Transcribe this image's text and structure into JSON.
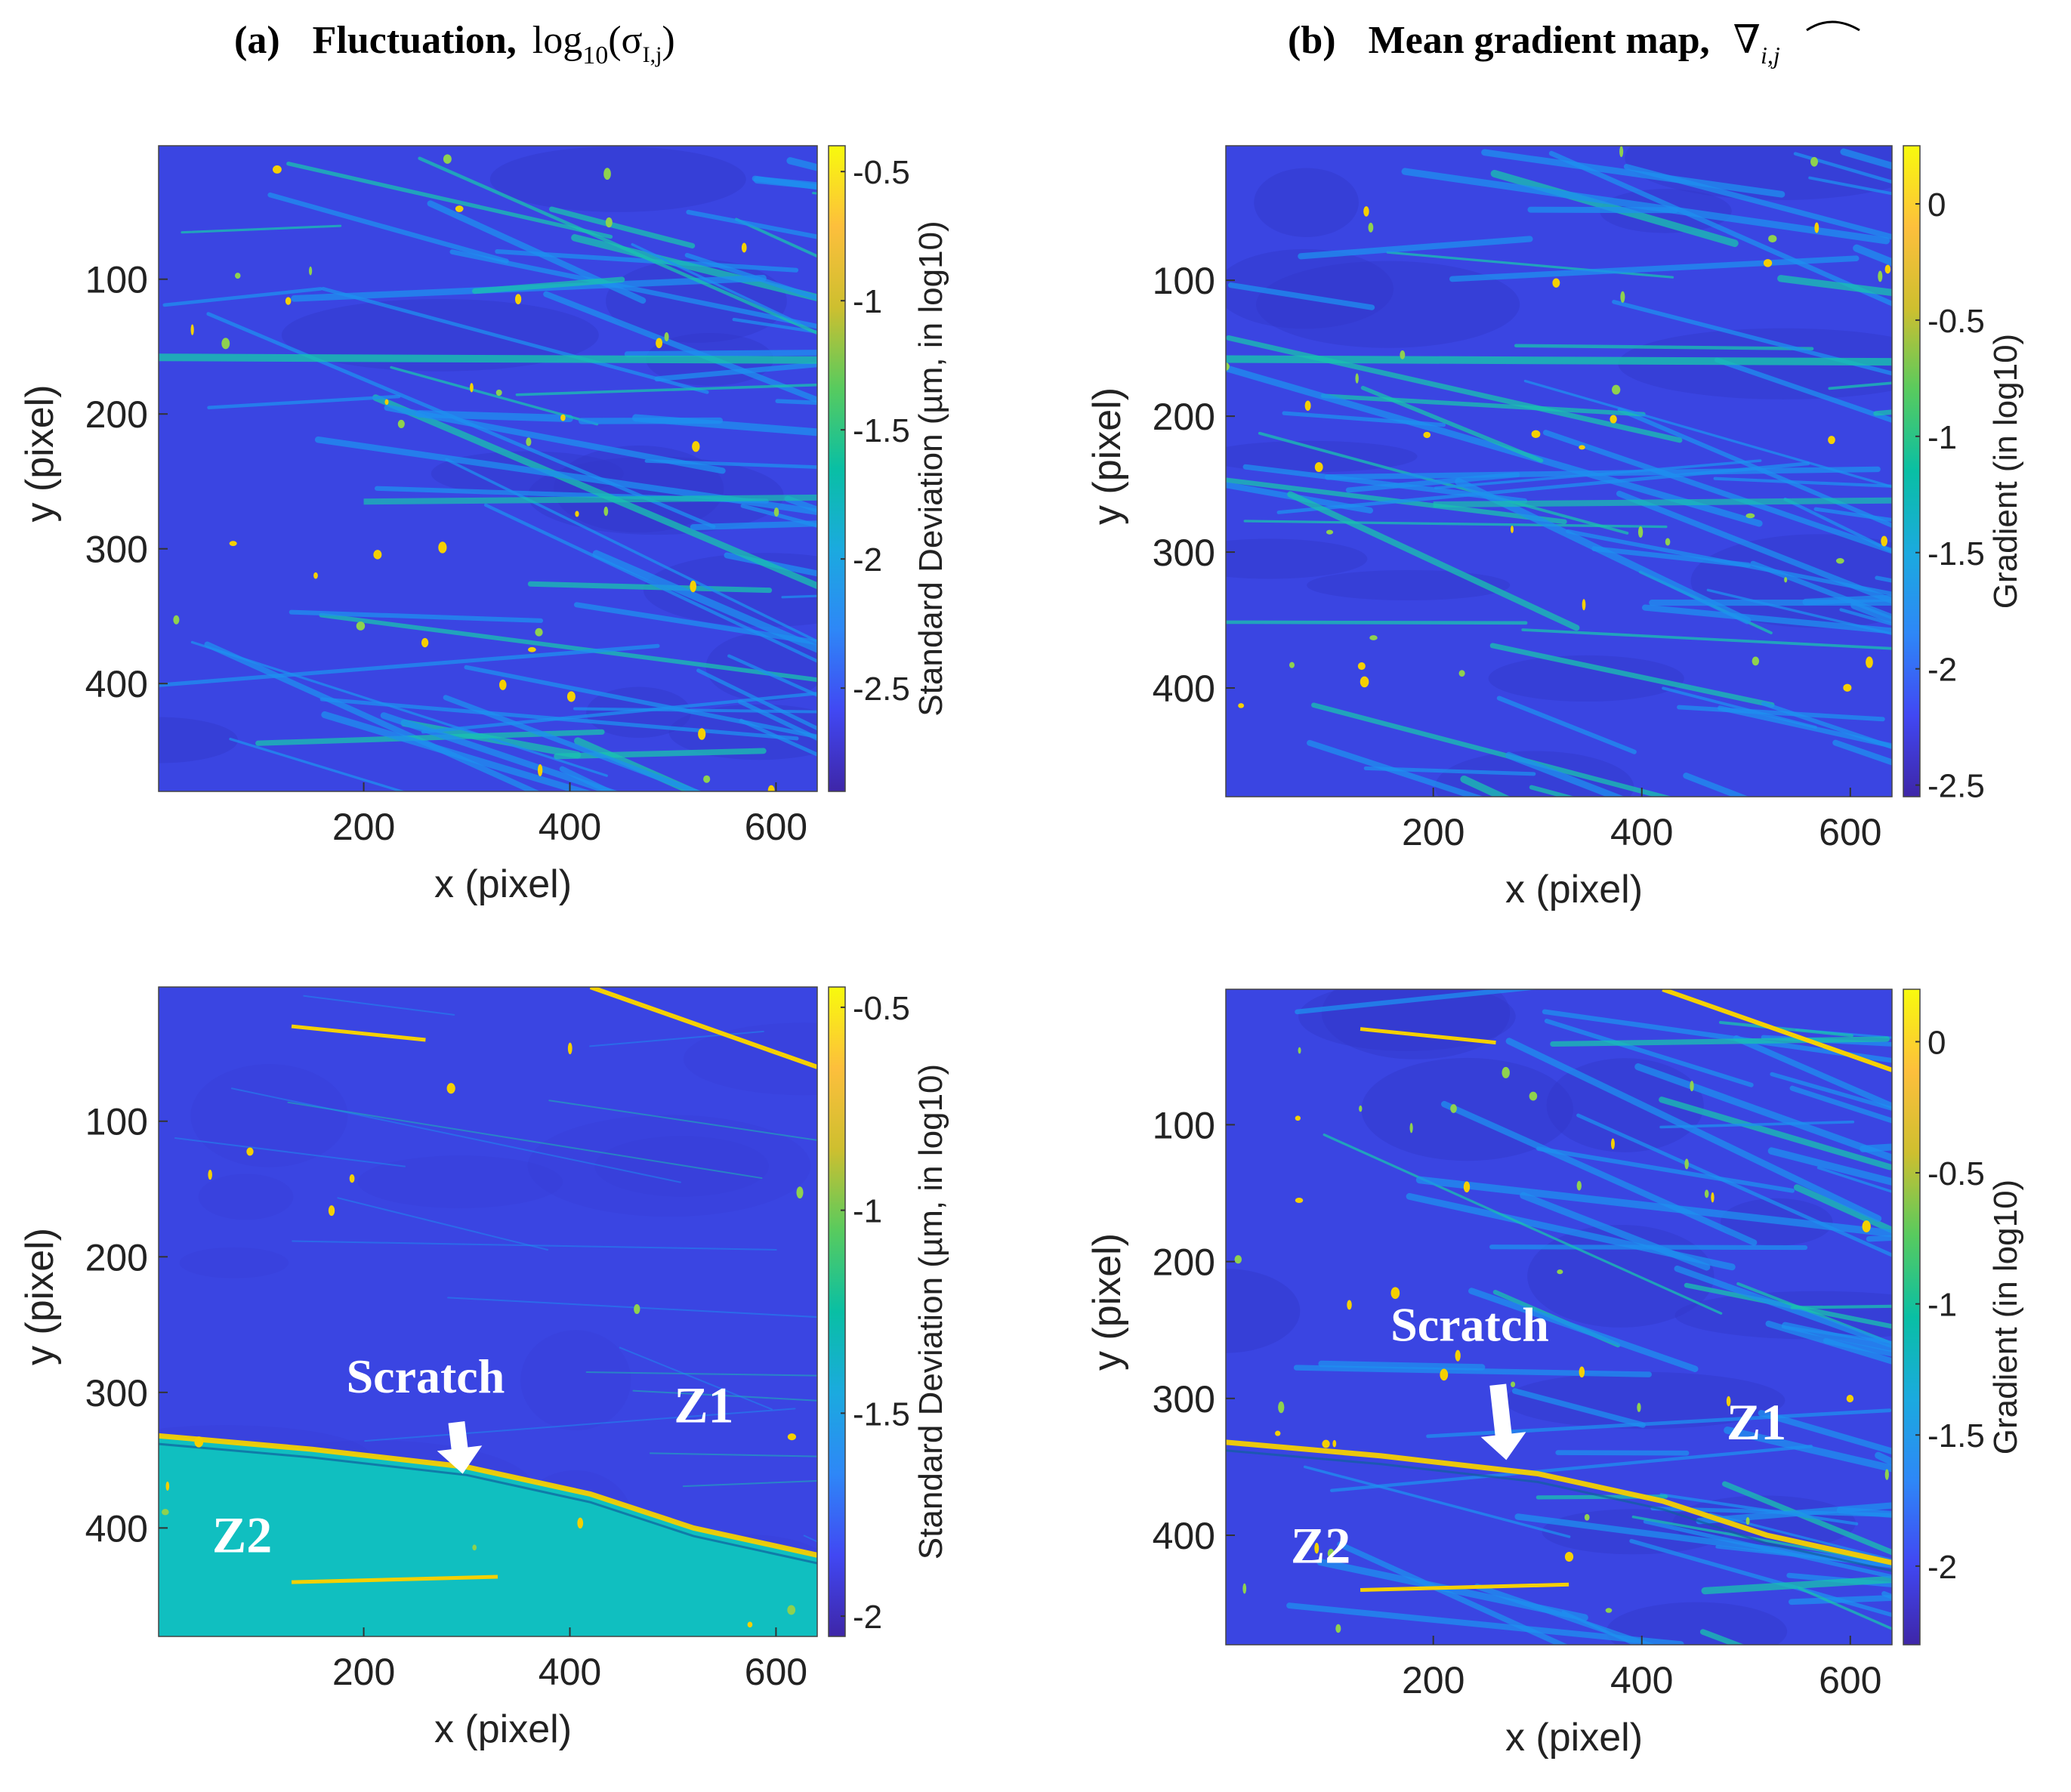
{
  "panel_titles": {
    "a": {
      "label": "(a)",
      "name": "Fluctuation,",
      "formula_prefix": "log",
      "formula_sub": "10",
      "formula_open": "(σ",
      "formula_open_sub": "I,j",
      "formula_close": ")"
    },
    "b": {
      "label": "(b)",
      "name": "Mean gradient map,",
      "formula_symbol": "∇",
      "formula_sub": "i,j"
    }
  },
  "annotations": {
    "scratch": "Scratch",
    "zone1": "Z1",
    "zone2": "Z2"
  },
  "colors": {
    "background": "#3a45e2",
    "background_dark": "#3338c9",
    "z2_fill": "#10bfc0",
    "streak": "#1e90f0",
    "streak_bright": "#19c3b0",
    "feature": "#f5d000",
    "arrow": "#ffffff"
  },
  "colormap": [
    "#3e26a8",
    "#4148f3",
    "#2e87f7",
    "#1baadf",
    "#09bfa4",
    "#58cb5e",
    "#cebf2f",
    "#fdbf3c",
    "#f8fa0d"
  ],
  "chart_data": [
    {
      "id": "a-top",
      "type": "heatmap",
      "title": "Fluctuation, log10(σI,j)",
      "xlabel": "x (pixel)",
      "ylabel": "y (pixel)",
      "xlim": [
        1,
        640
      ],
      "ylim": [
        1,
        480
      ],
      "xticks": [
        200,
        400,
        600
      ],
      "yticks": [
        100,
        200,
        300,
        400
      ],
      "colorbar": {
        "label": "Standard Deviation (µm, in log10)",
        "ticks": [
          -0.5,
          -1,
          -1.5,
          -2,
          -2.5
        ],
        "range": [
          -2.9,
          -0.4
        ]
      }
    },
    {
      "id": "b-top",
      "type": "heatmap",
      "title": "Mean gradient map",
      "xlabel": "x (pixel)",
      "ylabel": "y (pixel)",
      "xlim": [
        1,
        640
      ],
      "ylim": [
        1,
        480
      ],
      "xticks": [
        200,
        400,
        600
      ],
      "yticks": [
        100,
        200,
        300,
        400
      ],
      "colorbar": {
        "label": "Gradient (in log10)",
        "ticks": [
          0,
          -0.5,
          -1,
          -1.5,
          -2,
          -2.5
        ],
        "range": [
          -2.55,
          0.25
        ]
      }
    },
    {
      "id": "a-bottom",
      "type": "heatmap",
      "title": "Fluctuation, log10(σI,j)",
      "xlabel": "x (pixel)",
      "ylabel": "y (pixel)",
      "xlim": [
        1,
        640
      ],
      "ylim": [
        1,
        480
      ],
      "xticks": [
        200,
        400,
        600
      ],
      "yticks": [
        100,
        200,
        300,
        400
      ],
      "colorbar": {
        "label": "Standard Deviation (µm, in log10)",
        "ticks": [
          -0.5,
          -1,
          -1.5,
          -2
        ],
        "range": [
          -2.05,
          -0.45
        ]
      },
      "regions": [
        "Z1",
        "Z2"
      ],
      "annotations": [
        "Scratch",
        "Z1",
        "Z2"
      ]
    },
    {
      "id": "b-bottom",
      "type": "heatmap",
      "title": "Mean gradient map",
      "xlabel": "x (pixel)",
      "ylabel": "y (pixel)",
      "xlim": [
        1,
        640
      ],
      "ylim": [
        1,
        480
      ],
      "xticks": [
        200,
        400,
        600
      ],
      "yticks": [
        100,
        200,
        300,
        400
      ],
      "colorbar": {
        "label": "Gradient (in log10)",
        "ticks": [
          0,
          -0.5,
          -1,
          -1.5,
          -2
        ],
        "range": [
          -2.3,
          0.2
        ]
      },
      "annotations": [
        "Scratch",
        "Z1",
        "Z2"
      ]
    }
  ]
}
